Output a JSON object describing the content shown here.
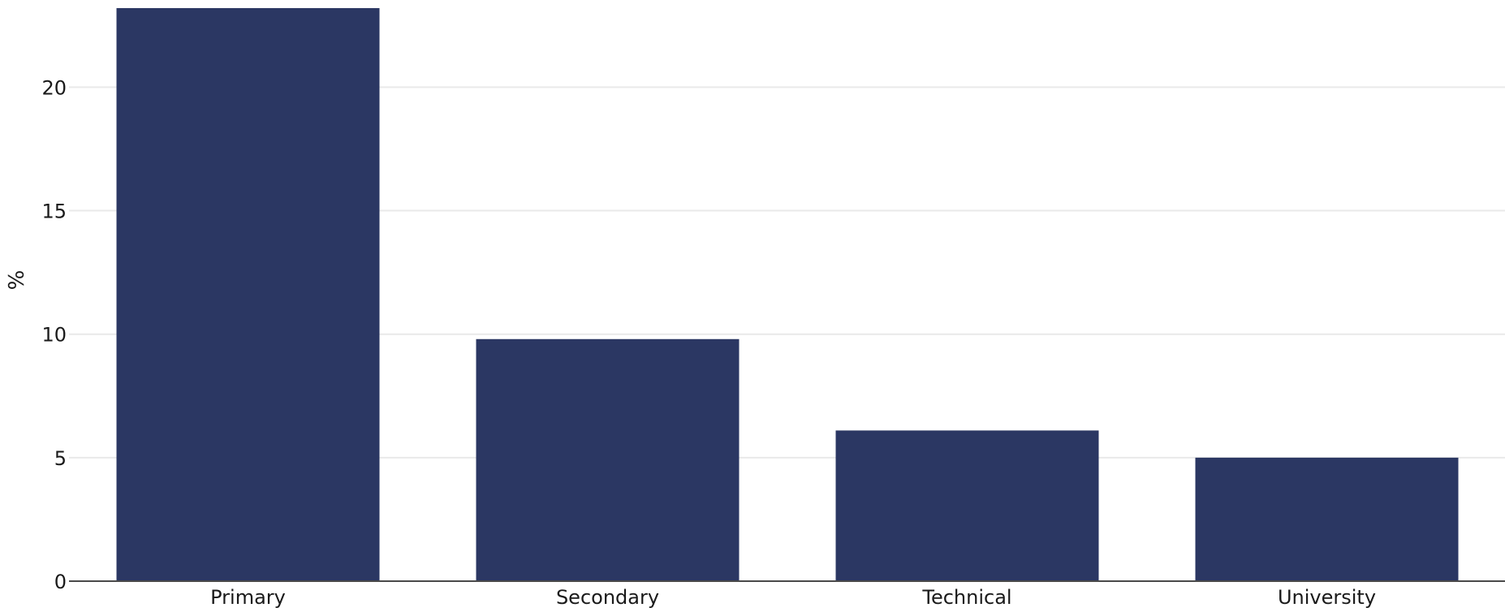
{
  "chart_data": {
    "type": "bar",
    "title": "",
    "xlabel": "",
    "ylabel": "%",
    "categories": [
      "Primary",
      "Secondary",
      "Technical",
      "University"
    ],
    "values": [
      23.2,
      9.8,
      6.1,
      5.0
    ],
    "ylim": [
      0,
      23.2
    ],
    "yticks": [
      0,
      5,
      10,
      15,
      20
    ],
    "grid": true,
    "bar_color": "#2b3763"
  }
}
